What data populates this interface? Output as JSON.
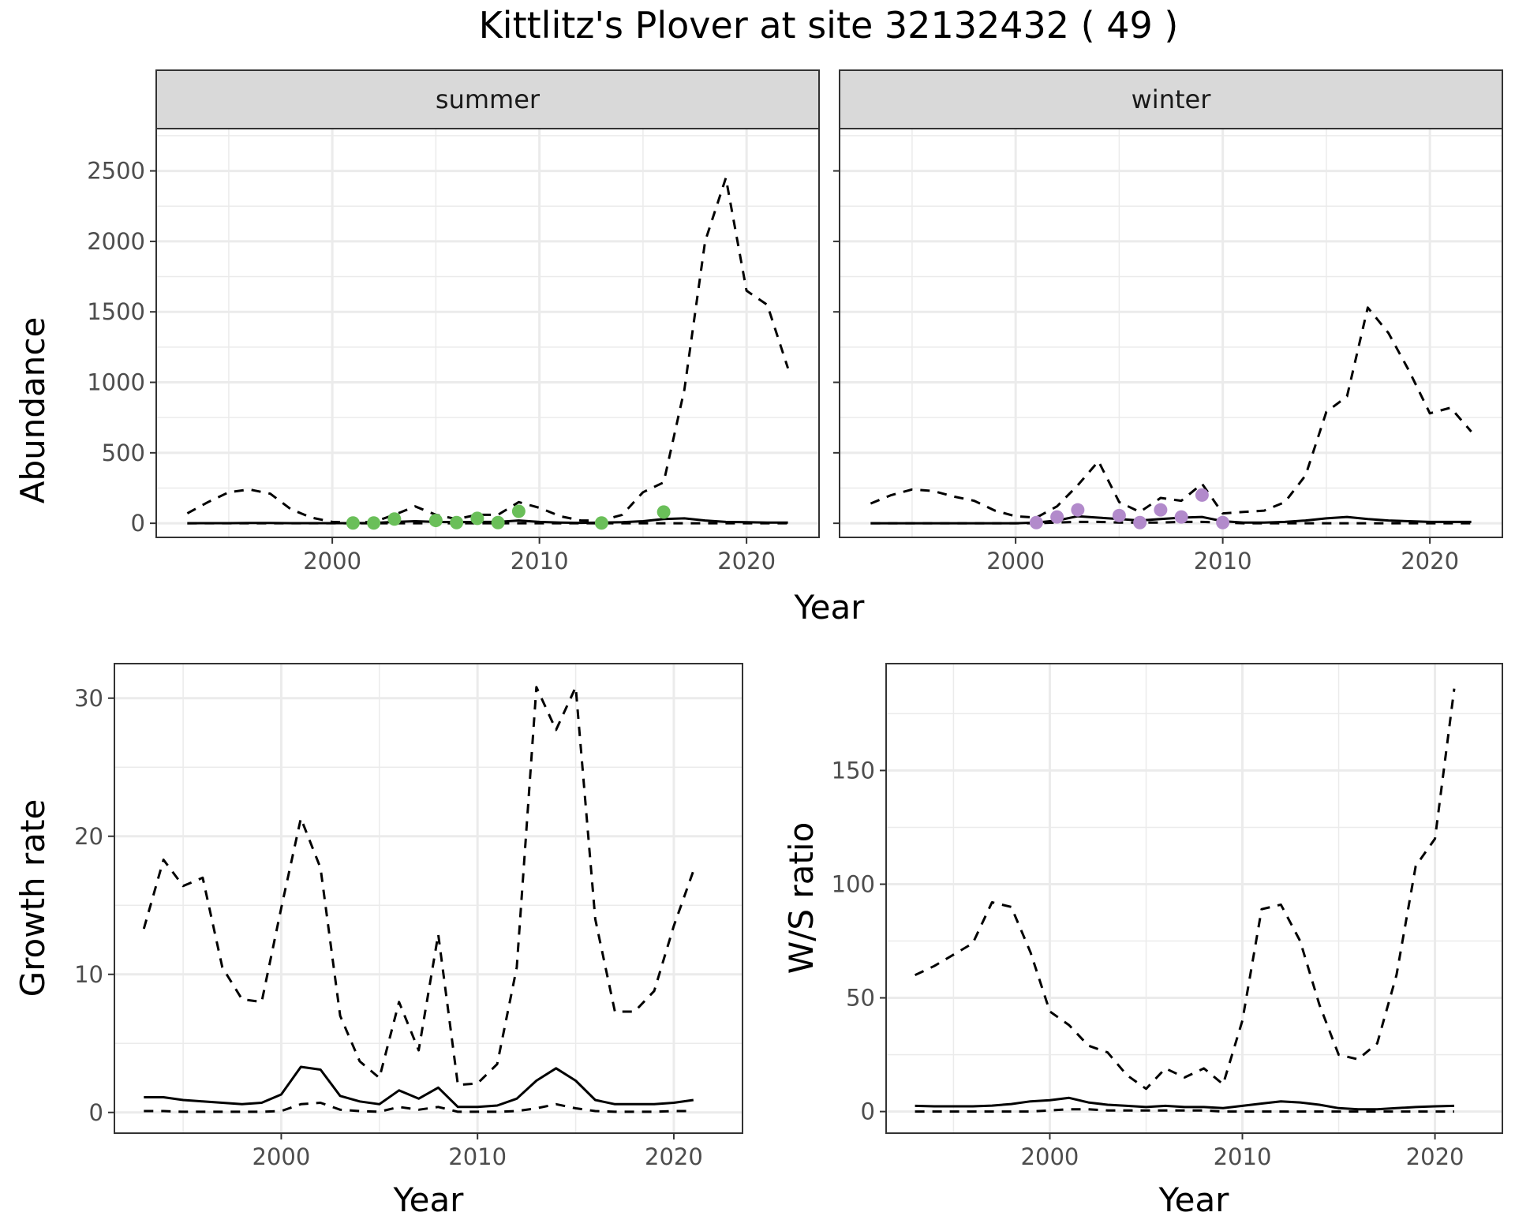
{
  "title": "Kittlitz's Plover at site 32132432 ( 49 )",
  "chart_data": [
    {
      "type": "line",
      "panel": "summer",
      "strip": "summer",
      "xlabel": "Year",
      "ylabel": "Abundance",
      "xlim": [
        1991.5,
        2023.5
      ],
      "ylim": [
        -100,
        2800
      ],
      "xticks": [
        2000,
        2010,
        2020
      ],
      "yticks": [
        0,
        500,
        1000,
        1500,
        2000,
        2500
      ],
      "grid": true,
      "series": [
        {
          "style": "dashed",
          "x": [
            1993,
            1994,
            1995,
            1996,
            1997,
            1998,
            1999,
            2000,
            2001,
            2002,
            2003,
            2004,
            2005,
            2006,
            2007,
            2008,
            2009,
            2010,
            2011,
            2012,
            2013,
            2014,
            2015,
            2016,
            2017,
            2018,
            2019,
            2020,
            2021,
            2022
          ],
          "y": [
            70,
            150,
            220,
            240,
            210,
            100,
            40,
            10,
            5,
            10,
            60,
            120,
            60,
            30,
            60,
            60,
            150,
            110,
            50,
            20,
            20,
            60,
            220,
            290,
            950,
            2000,
            2450,
            1650,
            1550,
            1100
          ]
        },
        {
          "style": "solid",
          "x": [
            1993,
            1994,
            1995,
            1996,
            1997,
            1998,
            1999,
            2000,
            2001,
            2002,
            2003,
            2004,
            2005,
            2006,
            2007,
            2008,
            2009,
            2010,
            2011,
            2012,
            2013,
            2014,
            2015,
            2016,
            2017,
            2018,
            2019,
            2020,
            2021,
            2022
          ],
          "y": [
            0,
            1,
            1,
            2,
            2,
            1,
            1,
            1,
            1,
            2,
            10,
            15,
            10,
            8,
            10,
            10,
            20,
            10,
            5,
            3,
            5,
            8,
            15,
            30,
            35,
            20,
            10,
            8,
            5,
            5
          ]
        },
        {
          "style": "dashed",
          "x": [
            1993,
            1994,
            1995,
            1996,
            1997,
            1998,
            1999,
            2000,
            2001,
            2002,
            2003,
            2004,
            2005,
            2006,
            2007,
            2008,
            2009,
            2010,
            2011,
            2012,
            2013,
            2014,
            2015,
            2016,
            2017,
            2018,
            2019,
            2020,
            2021,
            2022
          ],
          "y": [
            0,
            0,
            0,
            0,
            0,
            0,
            0,
            0,
            0,
            0,
            0,
            0,
            0,
            0,
            0,
            0,
            0,
            0,
            0,
            0,
            0,
            0,
            0,
            0,
            0,
            0,
            0,
            0,
            0,
            0
          ]
        }
      ],
      "points": {
        "color": "#6abf59",
        "x": [
          2001,
          2002,
          2003,
          2005,
          2006,
          2007,
          2008,
          2009,
          2013,
          2016
        ],
        "y": [
          2,
          2,
          30,
          20,
          5,
          35,
          5,
          85,
          2,
          80
        ]
      }
    },
    {
      "type": "line",
      "panel": "winter",
      "strip": "winter",
      "xlabel": "Year",
      "ylabel": "Abundance",
      "xlim": [
        1991.5,
        2023.5
      ],
      "ylim": [
        -100,
        2800
      ],
      "xticks": [
        2000,
        2010,
        2020
      ],
      "yticks": [
        0,
        500,
        1000,
        1500,
        2000,
        2500
      ],
      "grid": true,
      "series": [
        {
          "style": "dashed",
          "x": [
            1993,
            1994,
            1995,
            1996,
            1997,
            1998,
            1999,
            2000,
            2001,
            2002,
            2003,
            2004,
            2005,
            2006,
            2007,
            2008,
            2009,
            2010,
            2011,
            2012,
            2013,
            2014,
            2015,
            2016,
            2017,
            2018,
            2019,
            2020,
            2021,
            2022
          ],
          "y": [
            140,
            200,
            240,
            230,
            190,
            160,
            90,
            50,
            40,
            120,
            270,
            440,
            150,
            80,
            180,
            160,
            280,
            70,
            80,
            90,
            150,
            340,
            790,
            900,
            1530,
            1350,
            1080,
            780,
            820,
            650
          ]
        },
        {
          "style": "solid",
          "x": [
            1993,
            1994,
            1995,
            1996,
            1997,
            1998,
            1999,
            2000,
            2001,
            2002,
            2003,
            2004,
            2005,
            2006,
            2007,
            2008,
            2009,
            2010,
            2011,
            2012,
            2013,
            2014,
            2015,
            2016,
            2017,
            2018,
            2019,
            2020,
            2021,
            2022
          ],
          "y": [
            0,
            0,
            0,
            0,
            0,
            0,
            0,
            0,
            5,
            20,
            50,
            40,
            30,
            20,
            30,
            40,
            45,
            15,
            5,
            5,
            10,
            20,
            35,
            45,
            30,
            20,
            15,
            10,
            10,
            10
          ]
        },
        {
          "style": "dashed",
          "x": [
            1993,
            1994,
            1995,
            1996,
            1997,
            1998,
            1999,
            2000,
            2001,
            2002,
            2003,
            2004,
            2005,
            2006,
            2007,
            2008,
            2009,
            2010,
            2011,
            2012,
            2013,
            2014,
            2015,
            2016,
            2017,
            2018,
            2019,
            2020,
            2021,
            2022
          ],
          "y": [
            0,
            0,
            0,
            0,
            0,
            0,
            0,
            0,
            0,
            5,
            10,
            10,
            5,
            5,
            5,
            10,
            10,
            5,
            0,
            0,
            0,
            0,
            0,
            0,
            0,
            0,
            0,
            0,
            0,
            0
          ]
        }
      ],
      "points": {
        "color": "#b28acb",
        "x": [
          2001,
          2002,
          2003,
          2005,
          2006,
          2007,
          2008,
          2009,
          2010
        ],
        "y": [
          5,
          45,
          95,
          55,
          5,
          95,
          45,
          200,
          5
        ]
      }
    },
    {
      "type": "line",
      "panel": "growth",
      "xlabel": "Year",
      "ylabel": "Growth rate",
      "xlim": [
        1991.5,
        2023.5
      ],
      "ylim": [
        -1.5,
        32.5
      ],
      "xticks": [
        2000,
        2010,
        2020
      ],
      "yticks": [
        0,
        10,
        20,
        30
      ],
      "grid": true,
      "series": [
        {
          "style": "dashed",
          "x": [
            1993,
            1994,
            1995,
            1996,
            1997,
            1998,
            1999,
            2000,
            2001,
            2002,
            2003,
            2004,
            2005,
            2006,
            2007,
            2008,
            2009,
            2010,
            2011,
            2012,
            2013,
            2014,
            2015,
            2016,
            2017,
            2018,
            2019,
            2020,
            2021
          ],
          "y": [
            13.3,
            18.3,
            16.4,
            17.0,
            10.5,
            8.2,
            8.0,
            14.8,
            21.3,
            17.7,
            7.0,
            3.7,
            2.5,
            8.0,
            4.5,
            12.9,
            2.0,
            2.1,
            3.5,
            10.5,
            30.8,
            27.7,
            30.8,
            14.0,
            7.3,
            7.3,
            8.8,
            13.5,
            17.5
          ]
        },
        {
          "style": "solid",
          "x": [
            1993,
            1994,
            1995,
            1996,
            1997,
            1998,
            1999,
            2000,
            2001,
            2002,
            2003,
            2004,
            2005,
            2006,
            2007,
            2008,
            2009,
            2010,
            2011,
            2012,
            2013,
            2014,
            2015,
            2016,
            2017,
            2018,
            2019,
            2020,
            2021
          ],
          "y": [
            1.1,
            1.1,
            0.9,
            0.8,
            0.7,
            0.6,
            0.7,
            1.3,
            3.3,
            3.1,
            1.2,
            0.8,
            0.6,
            1.6,
            1.0,
            1.8,
            0.4,
            0.4,
            0.5,
            1.0,
            2.3,
            3.2,
            2.3,
            0.9,
            0.6,
            0.6,
            0.6,
            0.7,
            0.9
          ]
        },
        {
          "style": "dashed",
          "x": [
            1993,
            1994,
            1995,
            1996,
            1997,
            1998,
            1999,
            2000,
            2001,
            2002,
            2003,
            2004,
            2005,
            2006,
            2007,
            2008,
            2009,
            2010,
            2011,
            2012,
            2013,
            2014,
            2015,
            2016,
            2017,
            2018,
            2019,
            2020,
            2021
          ],
          "y": [
            0.1,
            0.1,
            0.05,
            0.05,
            0.05,
            0.05,
            0.05,
            0.1,
            0.6,
            0.7,
            0.2,
            0.1,
            0.05,
            0.4,
            0.2,
            0.4,
            0.05,
            0.05,
            0.05,
            0.1,
            0.3,
            0.6,
            0.3,
            0.1,
            0.05,
            0.05,
            0.05,
            0.1,
            0.1
          ]
        }
      ]
    },
    {
      "type": "line",
      "panel": "ratio",
      "xlabel": "Year",
      "ylabel": "W/S ratio",
      "xlim": [
        1991.5,
        2023.5
      ],
      "ylim": [
        -9.5,
        197
      ],
      "xticks": [
        2000,
        2010,
        2020
      ],
      "yticks": [
        0,
        50,
        100,
        150
      ],
      "grid": true,
      "series": [
        {
          "style": "dashed",
          "x": [
            1993,
            1994,
            1995,
            1996,
            1997,
            1998,
            1999,
            2000,
            2001,
            2002,
            2003,
            2004,
            2005,
            2006,
            2007,
            2008,
            2009,
            2010,
            2011,
            2012,
            2013,
            2014,
            2015,
            2016,
            2017,
            2018,
            2019,
            2020,
            2021
          ],
          "y": [
            60,
            64,
            69,
            74,
            92,
            90,
            70,
            44,
            38,
            29,
            26,
            16,
            10,
            19,
            15,
            19,
            12,
            40,
            89,
            91,
            75,
            47,
            25,
            23,
            30,
            60,
            108,
            120,
            186
          ]
        },
        {
          "style": "solid",
          "x": [
            1993,
            1994,
            1995,
            1996,
            1997,
            1998,
            1999,
            2000,
            2001,
            2002,
            2003,
            2004,
            2005,
            2006,
            2007,
            2008,
            2009,
            2010,
            2011,
            2012,
            2013,
            2014,
            2015,
            2016,
            2017,
            2018,
            2019,
            2020,
            2021
          ],
          "y": [
            2.5,
            2.3,
            2.3,
            2.3,
            2.6,
            3.3,
            4.5,
            5,
            6,
            4,
            3,
            2.5,
            2,
            2.5,
            2,
            2,
            1.5,
            2.5,
            3.5,
            4.5,
            4,
            3,
            1.5,
            1,
            1,
            1.5,
            2,
            2.3,
            2.5
          ]
        },
        {
          "style": "dashed",
          "x": [
            1993,
            1994,
            1995,
            1996,
            1997,
            1998,
            1999,
            2000,
            2001,
            2002,
            2003,
            2004,
            2005,
            2006,
            2007,
            2008,
            2009,
            2010,
            2011,
            2012,
            2013,
            2014,
            2015,
            2016,
            2017,
            2018,
            2019,
            2020,
            2021
          ],
          "y": [
            0,
            0,
            0,
            0,
            0,
            0,
            0,
            0.5,
            1,
            1,
            0.5,
            0.5,
            0.5,
            0.5,
            0.5,
            0.5,
            0,
            0,
            0,
            0,
            0,
            0,
            0,
            0,
            0,
            0,
            0,
            0,
            0
          ]
        }
      ]
    }
  ]
}
